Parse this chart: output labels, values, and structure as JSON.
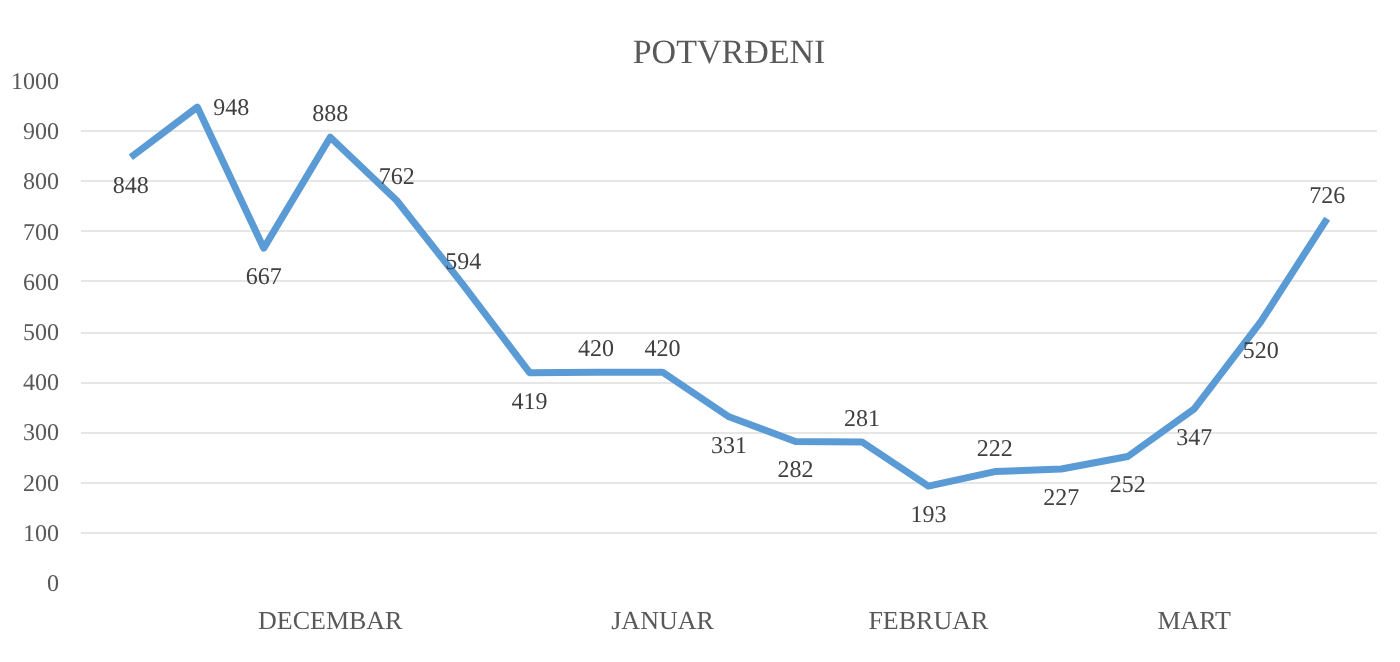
{
  "chart_data": {
    "type": "line",
    "title": "POTVRĐENI",
    "categories": [
      null,
      null,
      null,
      "DECEMBAR",
      null,
      null,
      null,
      null,
      "JANUAR",
      null,
      null,
      null,
      "FEBRUAR",
      null,
      null,
      null,
      "MART",
      null,
      null
    ],
    "series": [
      {
        "color": "#5b9bd5",
        "values": [
          848,
          948,
          667,
          888,
          762,
          594,
          419,
          420,
          420,
          331,
          282,
          281,
          193,
          222,
          227,
          252,
          347,
          520,
          726
        ]
      }
    ],
    "ylim": [
      0,
      1000
    ],
    "yticks": [
      0,
      100,
      200,
      300,
      400,
      500,
      600,
      700,
      800,
      900,
      1000
    ],
    "grid": "y",
    "marker": "none",
    "line_style": "solid",
    "data_labels": true
  }
}
